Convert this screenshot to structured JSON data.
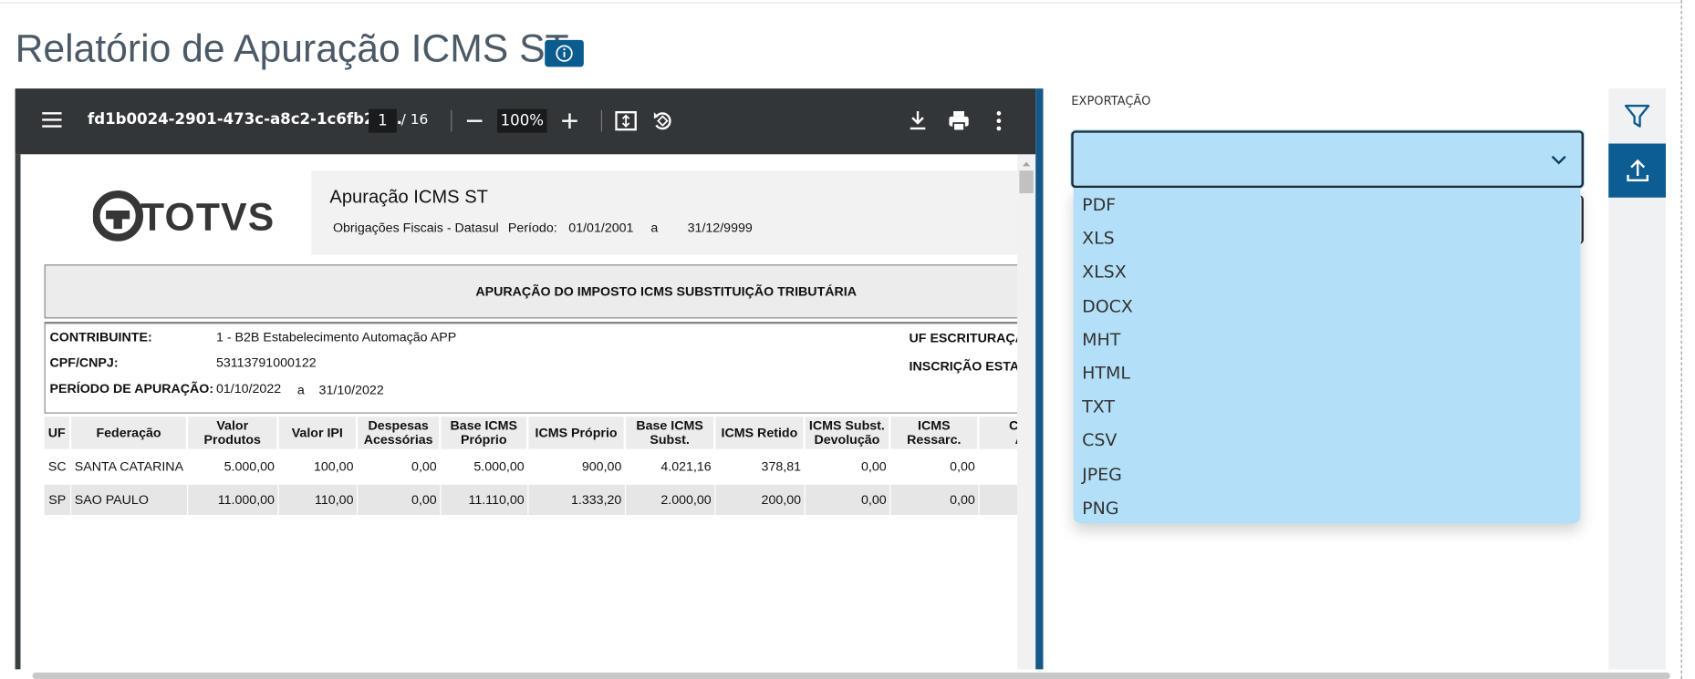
{
  "header": {
    "title": "Relatório de Apuração ICMS ST"
  },
  "viewer": {
    "file_name": "fd1b0024-2901-473c-a8c2-1c6fb21...",
    "page": "1",
    "page_total": "/ 16",
    "zoom": "100%"
  },
  "document": {
    "logo": "TOTVS",
    "title": "Apuração ICMS ST",
    "subtitle": "Obrigações Fiscais - Datasul",
    "period_label": "Período:",
    "period_start": "01/01/2001",
    "period_sep": "a",
    "period_end": "31/12/9999",
    "section_title": "APURAÇÃO DO IMPOSTO ICMS SUBSTITUIÇÃO TRIBUTÁRIA",
    "info": [
      {
        "label": "CONTRIBUINTE:",
        "value": "1 - B2B  Estabelecimento Automação APP"
      },
      {
        "label": "CPF/CNPJ:",
        "value": "53113791000122"
      },
      {
        "label": "PERÍODO DE APURAÇÃO:",
        "value": "01/10/2022",
        "sep": "a",
        "value_end": "31/10/2022"
      }
    ],
    "right_labels": [
      "UF ESCRITURAÇÃ",
      "INSCRIÇÃO ESTA"
    ],
    "table": {
      "headers": [
        [
          "UF"
        ],
        [
          "Federação"
        ],
        [
          "Valor",
          "Produtos"
        ],
        [
          "Valor IPI"
        ],
        [
          "Despesas",
          "Acessórias"
        ],
        [
          "Base ICMS",
          "Próprio"
        ],
        [
          "ICMS Próprio"
        ],
        [
          "Base ICMS",
          "Subst."
        ],
        [
          "ICMS Retido"
        ],
        [
          "ICMS Subst.",
          "Devolução"
        ],
        [
          "ICMS",
          "Ressarc."
        ],
        [
          "Créd",
          "An"
        ]
      ],
      "rows": [
        [
          "SC",
          "SANTA CATARINA",
          "5.000,00",
          "100,00",
          "0,00",
          "5.000,00",
          "900,00",
          "4.021,16",
          "378,81",
          "0,00",
          "0,00"
        ],
        [
          "SP",
          "SAO PAULO",
          "11.000,00",
          "110,00",
          "0,00",
          "11.110,00",
          "1.333,20",
          "2.000,00",
          "200,00",
          "0,00",
          "0,00"
        ]
      ]
    }
  },
  "export": {
    "label": "EXPORTAÇÃO",
    "options": [
      "PDF",
      "XLS",
      "XLSX",
      "DOCX",
      "MHT",
      "HTML",
      "TXT",
      "CSV",
      "JPEG",
      "PNG"
    ]
  }
}
